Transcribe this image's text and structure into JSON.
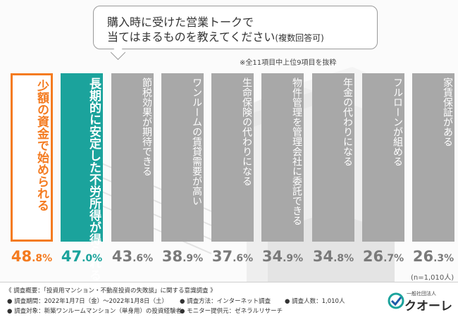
{
  "question": {
    "line1": "購入時に受けた営業トークで",
    "line2": "当てはまるものを教えてください",
    "line2_note": "(複数回答可)"
  },
  "extract_note": "※全11項目中上位9項目を抜粋",
  "sample_note": "(n=1,010人)",
  "colors": {
    "orange": "#F47B20",
    "teal": "#1BA39C",
    "gray": "#a8a8a8",
    "gray_text": "#7a7a7a"
  },
  "chart_data": {
    "type": "bar",
    "categories": [
      "少額の資金で始められる",
      "長期的に安定した不労所得が得られる",
      "節税効果が期待できる",
      "ワンルームの賃貸需要が高い",
      "生命保険の代わりになる",
      "物件管理を管理会社に委託できる",
      "年金の代わりになる",
      "フルローンが組める",
      "家賃保証がある"
    ],
    "values": [
      48.8,
      47.0,
      43.6,
      38.9,
      37.6,
      34.9,
      34.8,
      26.7,
      26.3
    ],
    "value_labels": [
      {
        "int": "48",
        "dec": ".8%"
      },
      {
        "int": "47",
        "dec": ".0%"
      },
      {
        "int": "43",
        "dec": ".6%"
      },
      {
        "int": "38",
        "dec": ".9%"
      },
      {
        "int": "37",
        "dec": ".6%"
      },
      {
        "int": "34",
        "dec": ".9%"
      },
      {
        "int": "34",
        "dec": ".8%"
      },
      {
        "int": "26",
        "dec": ".7%"
      },
      {
        "int": "26",
        "dec": ".3%"
      }
    ],
    "unit": "%"
  },
  "footer": {
    "title": "《 調査概要：「投資用マンション・不動産投資の失敗談」に関する意識調査 》",
    "period": "● 調査期間：2022年1月7日（金）～2022年1月8日（土）",
    "target": "● 調査対象：新築ワンルームマンション（単身用）の投資経験者",
    "method": "● 調査方法：インターネット調査",
    "provider": "● モニター提供元：ゼネラルリサーチ",
    "count": "● 調査人数：1,010人",
    "logo_small": "一般社団法人",
    "logo_main": "クオーレ"
  }
}
